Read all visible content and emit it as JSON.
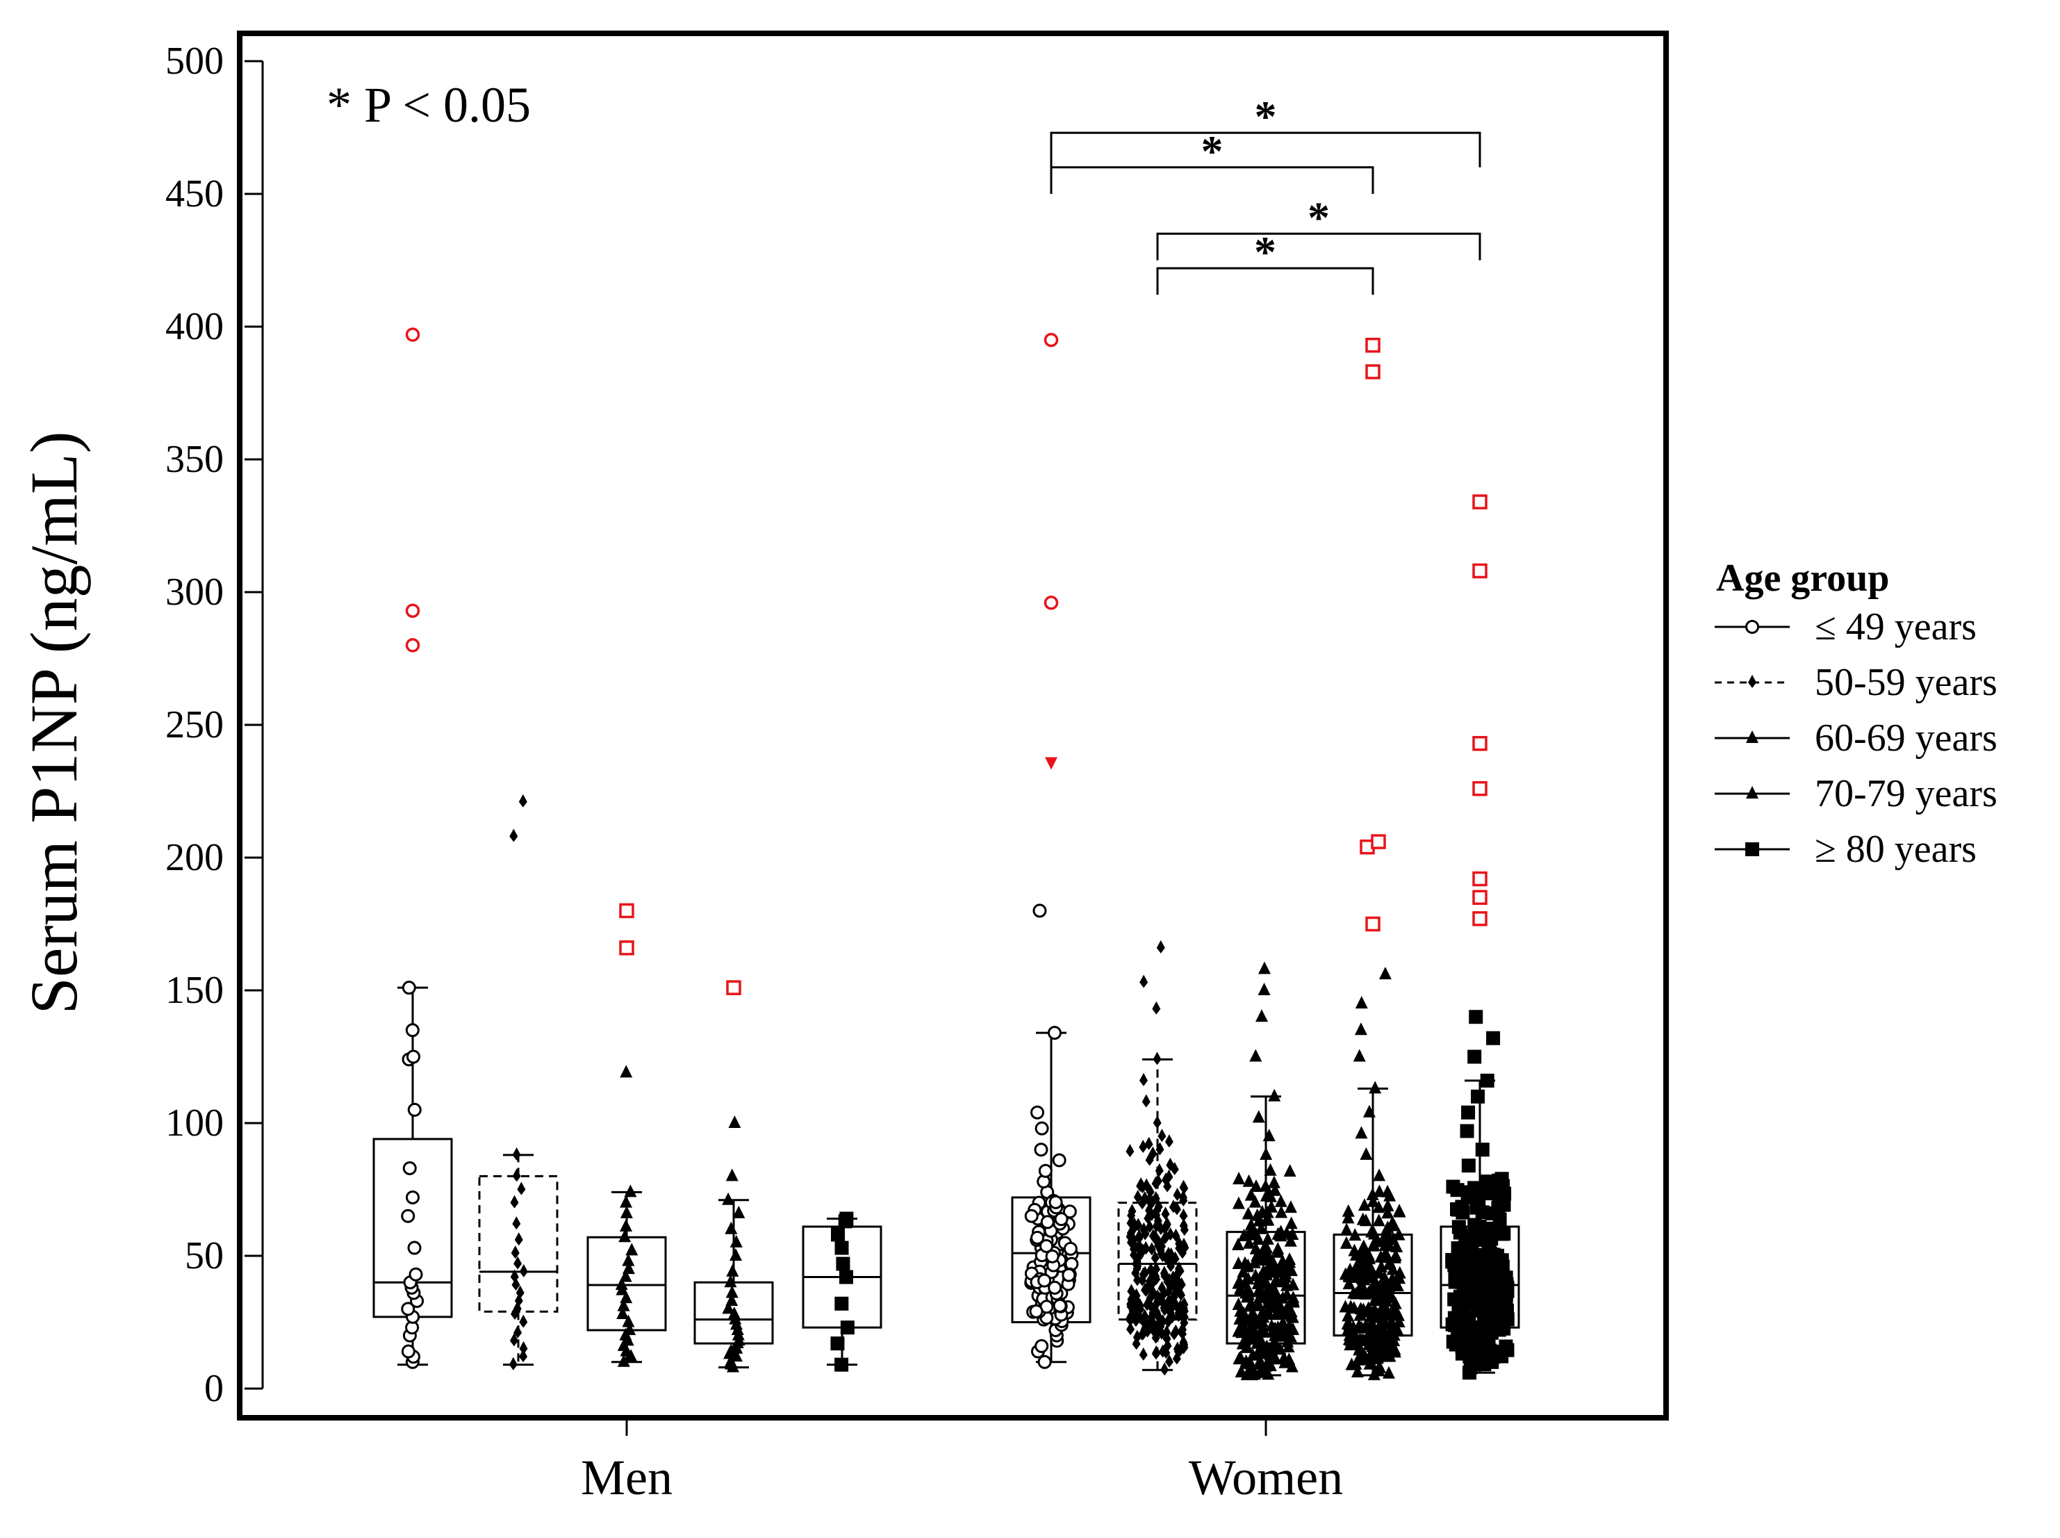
{
  "chart_data": {
    "type": "box",
    "title": "",
    "ylabel": "Serum P1NP (ng/mL)",
    "xlabel": "",
    "ylim": [
      0,
      500
    ],
    "yticks": [
      0,
      50,
      100,
      150,
      200,
      250,
      300,
      350,
      400,
      450,
      500
    ],
    "annotation": "* P < 0.05",
    "significance_star": "*",
    "groups": [
      "Men",
      "Women"
    ],
    "legend": {
      "title": "Age group",
      "entries": [
        {
          "label": "≤ 49 years",
          "line": "solid",
          "marker": "circle"
        },
        {
          "label": "50-59 years",
          "line": "dashed",
          "marker": "plus"
        },
        {
          "label": "60-69 years",
          "line": "solid",
          "marker": "triangle"
        },
        {
          "label": "70-79 years",
          "line": "solid",
          "marker": "triangle"
        },
        {
          "label": "≥ 80 years",
          "line": "solid",
          "marker": "square"
        }
      ]
    },
    "series": [
      {
        "group": "Men",
        "age": "≤ 49 years",
        "marker": "circle",
        "dashed": false,
        "q1": 27,
        "median": 40,
        "q3": 94,
        "whisker_low": 9,
        "whisker_high": 151,
        "points": [
          10,
          12,
          14,
          20,
          23,
          27,
          30,
          33,
          36,
          38,
          40,
          43,
          53,
          65,
          72,
          83,
          105,
          124,
          125,
          135,
          151
        ],
        "outliers": [
          280,
          293,
          397
        ]
      },
      {
        "group": "Men",
        "age": "50-59 years",
        "marker": "plus",
        "dashed": true,
        "q1": 29,
        "median": 44,
        "q3": 80,
        "whisker_low": 9,
        "whisker_high": 88,
        "points": [
          9,
          12,
          15,
          18,
          21,
          25,
          28,
          30,
          33,
          36,
          39,
          42,
          44,
          47,
          51,
          56,
          62,
          70,
          75,
          80,
          88,
          208,
          221
        ],
        "outliers": []
      },
      {
        "group": "Men",
        "age": "60-69 years",
        "marker": "triangle",
        "dashed": false,
        "q1": 22,
        "median": 39,
        "q3": 57,
        "whisker_low": 10,
        "whisker_high": 74,
        "points": [
          10,
          12,
          14,
          16,
          18,
          20,
          22,
          25,
          28,
          31,
          34,
          37,
          39,
          42,
          45,
          48,
          52,
          57,
          61,
          66,
          70,
          74,
          119
        ],
        "outliers": [
          166,
          180
        ]
      },
      {
        "group": "Men",
        "age": "70-79 years",
        "marker": "triangle",
        "dashed": false,
        "q1": 17,
        "median": 26,
        "q3": 40,
        "whisker_low": 8,
        "whisker_high": 71,
        "points": [
          8,
          9,
          10,
          12,
          13,
          14,
          15,
          17,
          18,
          20,
          22,
          24,
          26,
          28,
          30,
          33,
          36,
          40,
          44,
          50,
          55,
          60,
          66,
          71,
          80,
          100
        ],
        "outliers": [
          151
        ]
      },
      {
        "group": "Men",
        "age": "≥ 80 years",
        "marker": "square",
        "dashed": false,
        "q1": 23,
        "median": 42,
        "q3": 61,
        "whisker_low": 9,
        "whisker_high": 64,
        "points": [
          9,
          17,
          23,
          32,
          42,
          47,
          53,
          58,
          63,
          64
        ],
        "outliers": []
      },
      {
        "group": "Women",
        "age": "≤ 49 years",
        "marker": "circle",
        "dashed": false,
        "q1": 25,
        "median": 51,
        "q3": 72,
        "whisker_low": 10,
        "whisker_high": 134,
        "points": [
          10,
          14,
          16,
          18,
          20,
          22,
          24,
          26,
          29,
          32,
          35,
          38,
          41,
          44,
          47,
          50,
          53,
          56,
          59,
          63,
          66,
          70,
          74,
          78,
          82,
          86,
          90,
          98,
          104,
          134,
          180
        ],
        "outliers": [
          236,
          296,
          395
        ]
      },
      {
        "group": "Women",
        "age": "50-59 years",
        "marker": "plus",
        "dashed": true,
        "q1": 26,
        "median": 47,
        "q3": 70,
        "whisker_low": 7,
        "whisker_high": 124,
        "points": [
          7,
          10,
          13,
          16,
          19,
          22,
          25,
          28,
          31,
          34,
          37,
          40,
          43,
          46,
          49,
          52,
          55,
          58,
          61,
          64,
          67,
          70,
          74,
          78,
          82,
          86,
          90,
          95,
          100,
          108,
          116,
          124,
          143,
          153,
          166
        ],
        "outliers": []
      },
      {
        "group": "Women",
        "age": "60-69 years",
        "marker": "triangle",
        "dashed": false,
        "q1": 17,
        "median": 35,
        "q3": 59,
        "whisker_low": 5,
        "whisker_high": 110,
        "points": [
          5,
          7,
          9,
          11,
          13,
          15,
          17,
          19,
          22,
          25,
          28,
          31,
          34,
          37,
          40,
          44,
          48,
          52,
          56,
          60,
          65,
          70,
          76,
          82,
          88,
          95,
          102,
          110,
          125,
          140,
          150,
          158
        ],
        "outliers": []
      },
      {
        "group": "Women",
        "age": "70-79 years",
        "marker": "triangle",
        "dashed": false,
        "q1": 20,
        "median": 36,
        "q3": 58,
        "whisker_low": 5,
        "whisker_high": 113,
        "points": [
          5,
          7,
          9,
          11,
          13,
          15,
          18,
          21,
          24,
          27,
          30,
          33,
          36,
          39,
          42,
          46,
          50,
          54,
          58,
          63,
          68,
          74,
          80,
          88,
          96,
          104,
          113,
          125,
          135,
          145,
          156
        ],
        "outliers": [
          175,
          204,
          206,
          383,
          393
        ]
      },
      {
        "group": "Women",
        "age": "≥ 80 years",
        "marker": "square",
        "dashed": false,
        "q1": 23,
        "median": 39,
        "q3": 61,
        "whisker_low": 6,
        "whisker_high": 116,
        "points": [
          6,
          8,
          10,
          12,
          14,
          17,
          20,
          23,
          26,
          29,
          32,
          35,
          38,
          41,
          44,
          48,
          52,
          56,
          61,
          66,
          72,
          78,
          84,
          90,
          97,
          104,
          110,
          116,
          125,
          132,
          140
        ],
        "outliers": [
          177,
          185,
          192,
          226,
          243,
          308,
          334
        ]
      }
    ],
    "significance": [
      {
        "from": 5,
        "to": 9,
        "y": 473,
        "ybase": 460
      },
      {
        "from": 5,
        "to": 8,
        "y": 460,
        "ybase": 450
      },
      {
        "from": 6,
        "to": 9,
        "y": 435,
        "ybase": 425
      },
      {
        "from": 6,
        "to": 8,
        "y": 422,
        "ybase": 412
      }
    ]
  }
}
